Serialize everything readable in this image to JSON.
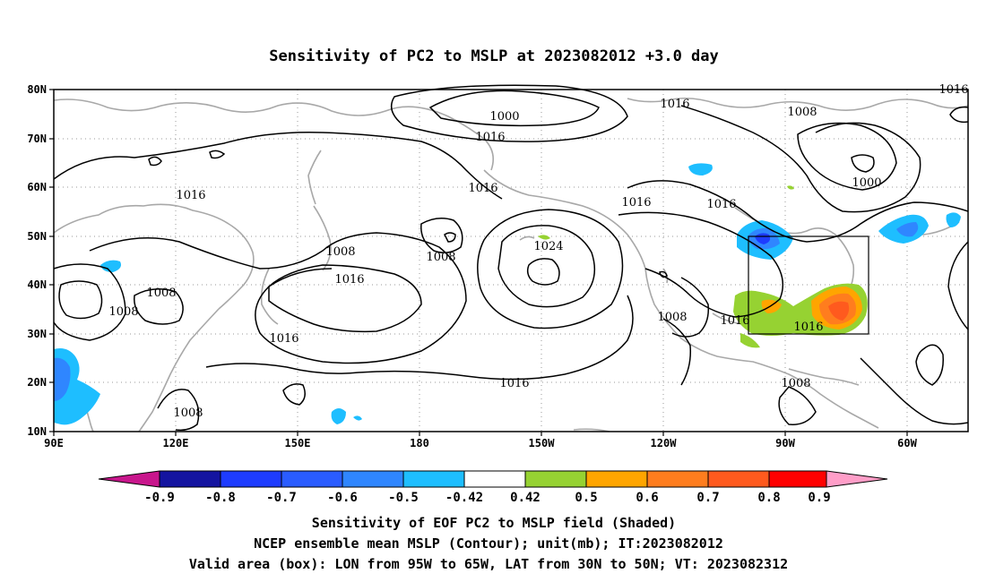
{
  "title": "Sensitivity of PC2 to MSLP at 2023082012 +3.0 day",
  "lat_labels": [
    "80N",
    "70N",
    "60N",
    "50N",
    "40N",
    "30N",
    "20N",
    "10N"
  ],
  "lon_labels": [
    "90E",
    "120E",
    "150E",
    "180",
    "150W",
    "120W",
    "90W",
    "60W"
  ],
  "contour_labels": [
    {
      "text": "1000"
    },
    {
      "text": "1016"
    },
    {
      "text": "1016"
    },
    {
      "text": "1008"
    },
    {
      "text": "1016"
    },
    {
      "text": "1000"
    },
    {
      "text": "1016"
    },
    {
      "text": "1016"
    },
    {
      "text": "1024"
    },
    {
      "text": "1016"
    },
    {
      "text": "1016"
    },
    {
      "text": "1008"
    },
    {
      "text": "1016"
    },
    {
      "text": "1008"
    },
    {
      "text": "1008"
    },
    {
      "text": "1016"
    },
    {
      "text": "1008"
    },
    {
      "text": "1016"
    },
    {
      "text": "1016"
    },
    {
      "text": "1016"
    },
    {
      "text": "1008"
    },
    {
      "text": "1008"
    }
  ],
  "colorbar": {
    "labels": [
      "-0.9",
      "-0.8",
      "-0.7",
      "-0.6",
      "-0.5",
      "-0.42",
      "0.42",
      "0.5",
      "0.6",
      "0.7",
      "0.8",
      "0.9"
    ],
    "colors": {
      "left_tip": "#c8168c",
      "c1": "#1414a0",
      "c2": "#1e3cff",
      "c3": "#2a5cff",
      "c4": "#2f86ff",
      "c5": "#1ebeff",
      "neutral": "#ffffff",
      "c6": "#96d232",
      "c7": "#ffa500",
      "c8": "#ff7d1e",
      "c9": "#ff5a1e",
      "c10": "#ff2a14",
      "c11": "#ff0000",
      "right_tip": "#ff9ec8"
    }
  },
  "captions": {
    "line1": "Sensitivity of EOF PC2 to MSLP field (Shaded)",
    "line2": "NCEP ensemble mean MSLP (Contour); unit(mb); IT:2023082012",
    "line3": "Valid area (box): LON from 95W to 65W, LAT from 30N to 50N; VT: 2023082312"
  }
}
